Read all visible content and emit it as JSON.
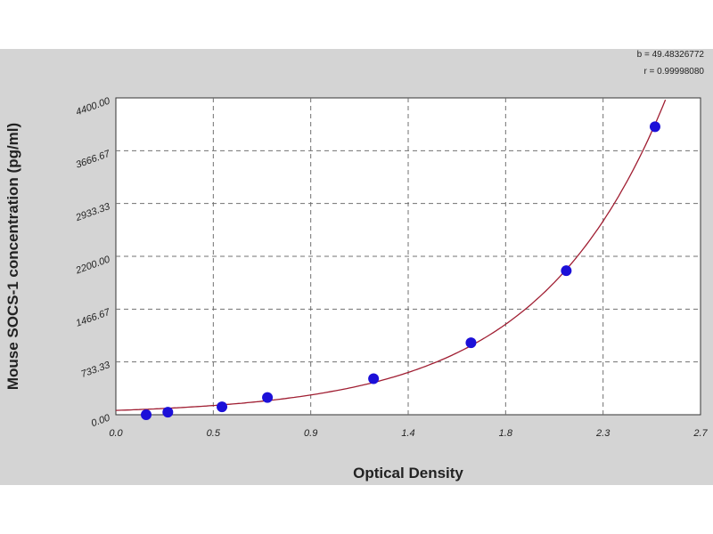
{
  "chart_data": {
    "type": "scatter",
    "title": "",
    "xlabel": "Optical Density",
    "ylabel": "Mouse SOCS-1 concentration (pg/ml)",
    "xlim": [
      0,
      2.7
    ],
    "ylim": [
      0,
      4400
    ],
    "x_tick_labels": [
      "0.0",
      "0.5",
      "0.9",
      "1.4",
      "1.8",
      "2.3",
      "2.7"
    ],
    "y_tick_labels": [
      "0.00",
      "733.33",
      "1466.67",
      "2200.00",
      "2933.33",
      "3666.67",
      "4400.00"
    ],
    "grid": true,
    "stats": {
      "b": "b = 49.48326772",
      "r": "r = 0.99998080"
    },
    "points": [
      {
        "x": 0.14,
        "y": 0
      },
      {
        "x": 0.24,
        "y": 35
      },
      {
        "x": 0.49,
        "y": 110
      },
      {
        "x": 0.7,
        "y": 240
      },
      {
        "x": 1.19,
        "y": 500
      },
      {
        "x": 1.64,
        "y": 1000
      },
      {
        "x": 2.08,
        "y": 2000
      },
      {
        "x": 2.49,
        "y": 4000
      }
    ],
    "fit_curve": {
      "type": "exponential",
      "a": 60,
      "k": 1.69
    },
    "colors": {
      "points": "#1c10d8",
      "curve": "#a01e32",
      "frame": "#d4d4d4",
      "plot": "#ffffff",
      "grid": "#707070"
    }
  }
}
